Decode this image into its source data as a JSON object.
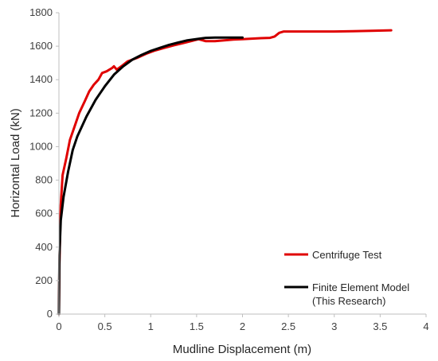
{
  "chart_data": {
    "type": "line",
    "xlabel": "Mudline Displacement (m)",
    "ylabel": "Horizontal Load (kN)",
    "xlim": [
      0,
      4
    ],
    "ylim": [
      0,
      1800
    ],
    "xticks": [
      0,
      0.5,
      1,
      1.5,
      2,
      2.5,
      3,
      3.5,
      4
    ],
    "xtick_labels": [
      "0",
      "0.5",
      "1",
      "1.5",
      "2",
      "2.5",
      "3",
      "3.5",
      "4"
    ],
    "yticks": [
      0,
      200,
      400,
      600,
      800,
      1000,
      1200,
      1400,
      1600,
      1800
    ],
    "ytick_labels": [
      "0",
      "200",
      "400",
      "600",
      "800",
      "1000",
      "1200",
      "1400",
      "1600",
      "1800"
    ],
    "grid": false,
    "legend_position": "bottom-right",
    "series": [
      {
        "name": "Centrifuge Test",
        "color": "#e00000",
        "points": [
          [
            0,
            0
          ],
          [
            0.005,
            300
          ],
          [
            0.02,
            650
          ],
          [
            0.04,
            830
          ],
          [
            0.08,
            930
          ],
          [
            0.12,
            1040
          ],
          [
            0.17,
            1120
          ],
          [
            0.22,
            1200
          ],
          [
            0.28,
            1270
          ],
          [
            0.33,
            1330
          ],
          [
            0.38,
            1370
          ],
          [
            0.43,
            1400
          ],
          [
            0.47,
            1440
          ],
          [
            0.52,
            1450
          ],
          [
            0.58,
            1470
          ],
          [
            0.6,
            1480
          ],
          [
            0.63,
            1460
          ],
          [
            0.68,
            1480
          ],
          [
            0.75,
            1510
          ],
          [
            0.85,
            1530
          ],
          [
            0.95,
            1555
          ],
          [
            1.05,
            1575
          ],
          [
            1.15,
            1590
          ],
          [
            1.25,
            1605
          ],
          [
            1.35,
            1618
          ],
          [
            1.45,
            1632
          ],
          [
            1.52,
            1642
          ],
          [
            1.6,
            1630
          ],
          [
            1.7,
            1630
          ],
          [
            1.8,
            1635
          ],
          [
            1.9,
            1640
          ],
          [
            2.0,
            1642
          ],
          [
            2.1,
            1645
          ],
          [
            2.2,
            1648
          ],
          [
            2.3,
            1650
          ],
          [
            2.35,
            1658
          ],
          [
            2.4,
            1680
          ],
          [
            2.45,
            1688
          ],
          [
            2.6,
            1688
          ],
          [
            2.8,
            1688
          ],
          [
            3.0,
            1688
          ],
          [
            3.2,
            1690
          ],
          [
            3.4,
            1692
          ],
          [
            3.62,
            1695
          ]
        ]
      },
      {
        "name": "Finite Element Model\n(This Research)",
        "color": "#000000",
        "points": [
          [
            0,
            0
          ],
          [
            0.005,
            350
          ],
          [
            0.02,
            560
          ],
          [
            0.05,
            700
          ],
          [
            0.1,
            850
          ],
          [
            0.15,
            980
          ],
          [
            0.2,
            1060
          ],
          [
            0.3,
            1180
          ],
          [
            0.4,
            1280
          ],
          [
            0.5,
            1360
          ],
          [
            0.6,
            1430
          ],
          [
            0.7,
            1480
          ],
          [
            0.8,
            1520
          ],
          [
            0.9,
            1548
          ],
          [
            1.0,
            1572
          ],
          [
            1.1,
            1590
          ],
          [
            1.2,
            1608
          ],
          [
            1.3,
            1622
          ],
          [
            1.4,
            1635
          ],
          [
            1.5,
            1643
          ],
          [
            1.6,
            1650
          ],
          [
            1.7,
            1652
          ],
          [
            1.8,
            1652
          ],
          [
            1.9,
            1652
          ],
          [
            2.0,
            1652
          ]
        ]
      }
    ]
  }
}
